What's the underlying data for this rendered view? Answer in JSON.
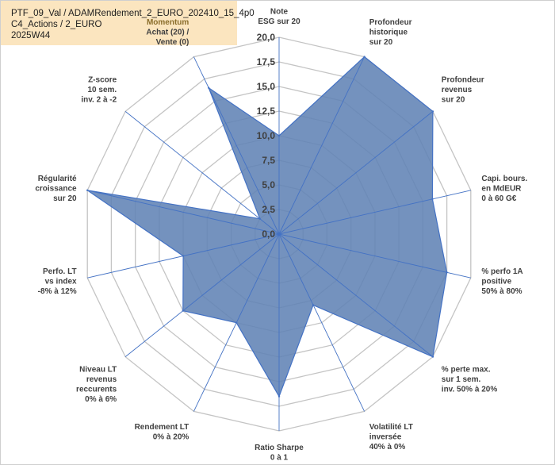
{
  "title": {
    "line1": "PTF_09_Val / ADAMRendement_2_EURO_202410_15_4p0",
    "line2": "C4_Actions / 2_EURO",
    "line3": "2025W44"
  },
  "chart_data": {
    "type": "radar",
    "rlim": [
      0,
      20
    ],
    "ticks": [
      "0,0",
      "2,5",
      "5,0",
      "7,5",
      "10,0",
      "12,5",
      "15,0",
      "17,5",
      "20,0"
    ],
    "tick_values": [
      0,
      2.5,
      5,
      7.5,
      10,
      12.5,
      15,
      17.5,
      20
    ],
    "axes": [
      [
        "Note",
        "ESG sur 20"
      ],
      [
        "Profondeur",
        "historique",
        "sur 20"
      ],
      [
        "Profondeur",
        "revenus",
        "sur 20"
      ],
      [
        "Capi. bours.",
        "en MdEUR",
        "0 à 60 G€"
      ],
      [
        "% perfo 1A",
        "positive",
        "50% à 80%"
      ],
      [
        "% perte max.",
        "sur 1 sem.",
        "inv. 50% à 20%"
      ],
      [
        "Volatilité LT",
        "inversée",
        "40% à 0%"
      ],
      [
        "Ratio Sharpe",
        "0 à 1"
      ],
      [
        "Rendement LT",
        "0% à 20%"
      ],
      [
        "Niveau LT",
        "revenus",
        "reccurents",
        "0% à 6%"
      ],
      [
        "Perfo. LT",
        "vs index",
        "-8% à 12%"
      ],
      [
        "Régularité",
        "croissance",
        "sur 20"
      ],
      [
        "Z-score",
        "10 sem.",
        "inv. 2 à -2"
      ],
      [
        "Momentum",
        "Achat (20) /",
        "Vente (0)"
      ]
    ],
    "series": [
      {
        "name": "ADAMRendement_2_EURO",
        "values": [
          10,
          20,
          20,
          16,
          17.5,
          20,
          8,
          16.5,
          10,
          12.5,
          10,
          20,
          2.5,
          16.5
        ]
      }
    ],
    "colors": {
      "fill": "#6183b5",
      "fill_opacity": 0.88,
      "stroke": "#4472c4",
      "grid": "#c4c4c4"
    }
  }
}
